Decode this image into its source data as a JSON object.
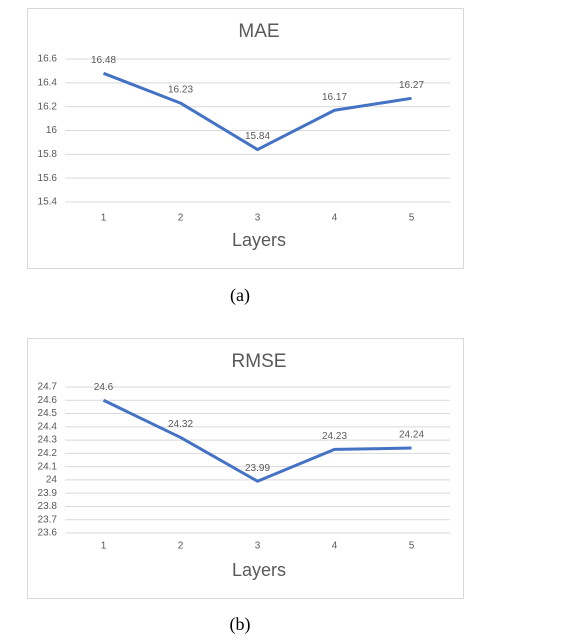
{
  "chart_data": [
    {
      "type": "line",
      "title": "MAE",
      "x_label": "Layers",
      "caption": "(a)",
      "categories": [
        "1",
        "2",
        "3",
        "4",
        "5"
      ],
      "series": [
        {
          "color": "#4472c4",
          "values": [
            16.48,
            16.23,
            15.84,
            16.17,
            16.27
          ]
        }
      ],
      "ylim": [
        15.4,
        16.6
      ],
      "yticks": [
        15.4,
        15.6,
        15.8,
        16,
        16.2,
        16.4,
        16.6
      ],
      "grid": true,
      "data_labels": true
    },
    {
      "type": "line",
      "title": "RMSE",
      "x_label": "Layers",
      "caption": "(b)",
      "categories": [
        "1",
        "2",
        "3",
        "4",
        "5"
      ],
      "series": [
        {
          "color": "#4472c4",
          "values": [
            24.6,
            24.32,
            23.99,
            24.23,
            24.24
          ]
        }
      ],
      "ylim": [
        23.6,
        24.7
      ],
      "yticks": [
        23.6,
        23.7,
        23.8,
        23.9,
        24,
        24.1,
        24.2,
        24.3,
        24.4,
        24.5,
        24.6,
        24.7
      ],
      "grid": true,
      "data_labels": true
    }
  ]
}
